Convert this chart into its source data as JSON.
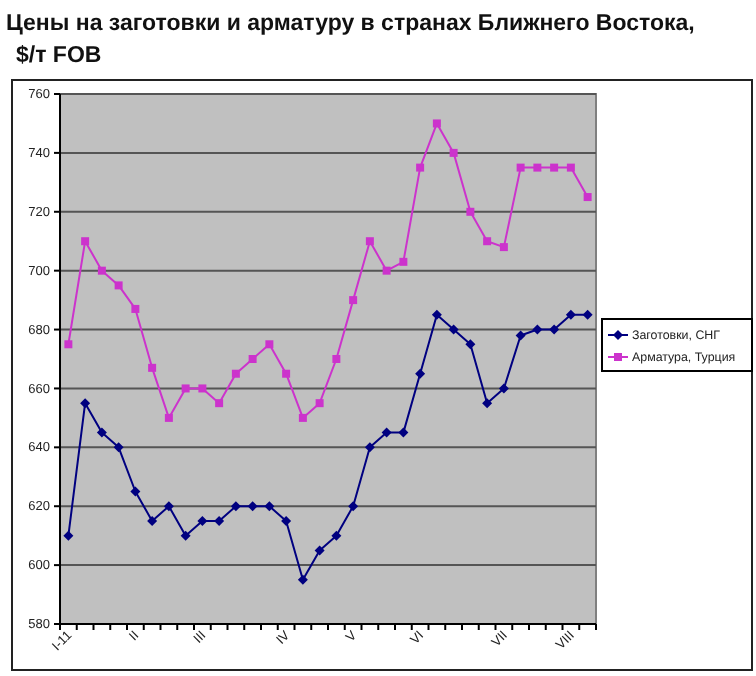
{
  "chart_data": {
    "type": "line",
    "title": "Цены на заготовки и арматуру в странах Ближнего Востока, $/т FOB",
    "categories": [
      "I-11",
      null,
      null,
      null,
      "II",
      null,
      null,
      null,
      "III",
      null,
      null,
      null,
      null,
      "IV",
      null,
      null,
      null,
      "V",
      null,
      null,
      null,
      "VI",
      null,
      null,
      null,
      null,
      "VII",
      null,
      null,
      null,
      "VIII",
      null
    ],
    "series": [
      {
        "name": "Заготовки, СНГ",
        "color": "#000080",
        "marker": "diamond",
        "values": [
          610,
          655,
          645,
          640,
          625,
          615,
          620,
          610,
          615,
          615,
          620,
          620,
          620,
          615,
          595,
          605,
          610,
          620,
          640,
          645,
          645,
          665,
          685,
          680,
          675,
          655,
          660,
          678,
          680,
          680,
          685,
          685
        ]
      },
      {
        "name": "Арматура, Турция",
        "color": "#cc33cc",
        "marker": "square",
        "values": [
          675,
          710,
          700,
          695,
          687,
          667,
          650,
          660,
          660,
          655,
          665,
          670,
          675,
          665,
          650,
          655,
          670,
          690,
          710,
          700,
          703,
          735,
          750,
          740,
          720,
          710,
          708,
          735,
          735,
          735,
          735,
          725
        ]
      }
    ],
    "ylim": [
      580,
      760
    ],
    "yticks": [
      580,
      600,
      620,
      640,
      660,
      680,
      700,
      720,
      740,
      760
    ],
    "grid": "y",
    "legend": "right"
  }
}
